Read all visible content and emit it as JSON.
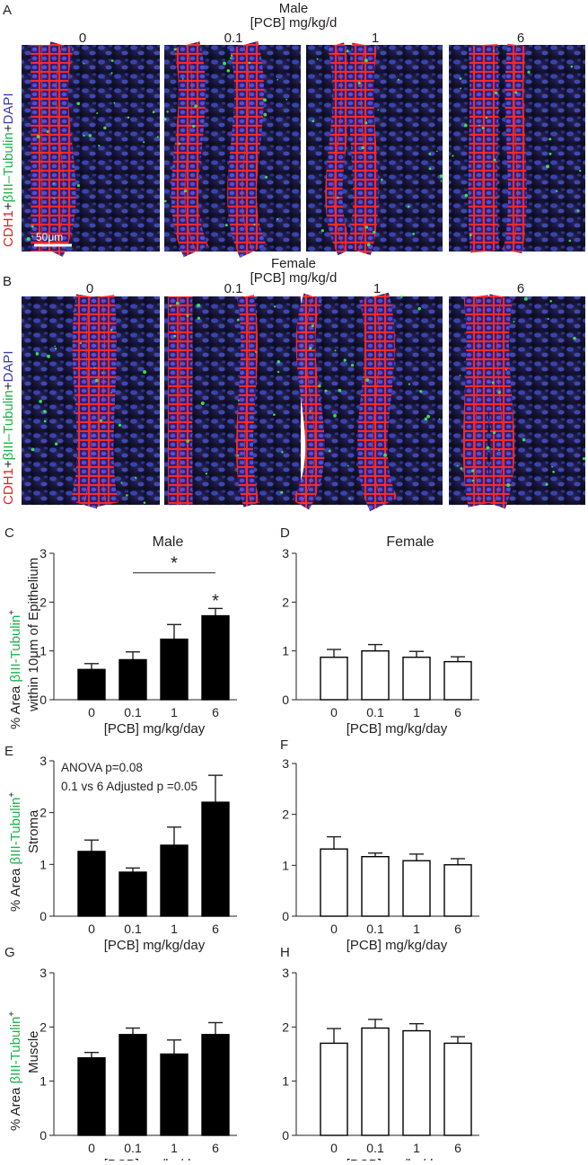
{
  "panels": {
    "A": {
      "letter": "A",
      "sex": "Male",
      "dose_label": "[PCB] mg/kg/d",
      "doses": [
        "0",
        "0.1",
        "1",
        "6"
      ],
      "stain_parts": [
        {
          "text": "CDH1",
          "color": "#e41f26"
        },
        {
          "text": "+",
          "color": "#231f20"
        },
        {
          "text": "βIII–Tubulin",
          "color": "#1db34a"
        },
        {
          "text": "+",
          "color": "#231f20"
        },
        {
          "text": "DAPI",
          "color": "#3a3fa8"
        }
      ],
      "scale_bar": "50μm"
    },
    "B": {
      "letter": "B",
      "sex": "Female",
      "dose_label": "[PCB] mg/kg/d",
      "doses": [
        "0",
        "0.1",
        "1",
        "6"
      ],
      "stain_parts": [
        {
          "text": "CDH1",
          "color": "#e41f26"
        },
        {
          "text": "+",
          "color": "#231f20"
        },
        {
          "text": "βIII–Tubulin",
          "color": "#1db34a"
        },
        {
          "text": "+",
          "color": "#231f20"
        },
        {
          "text": "DAPI",
          "color": "#3a3fa8"
        }
      ]
    }
  },
  "row_ylabels": [
    {
      "prefix": "% Area ",
      "marker": "βIII-Tubulin",
      "suffix": "+",
      "line2": "within 10μm of Epithelium"
    },
    {
      "prefix": "% Area ",
      "marker": "βIII-Tubulin",
      "suffix": "+",
      "line2": "Stroma"
    },
    {
      "prefix": "% Area ",
      "marker": "βIII-Tubulin",
      "suffix": "+",
      "line2": "Muscle"
    }
  ],
  "colors": {
    "marker_green": "#1db34a",
    "male_bar": "#000000",
    "female_bar": "#ffffff",
    "axis": "#231f20"
  },
  "chart_data": [
    {
      "letter": "C",
      "type": "bar",
      "title": "Male",
      "categories": [
        "0",
        "0.1",
        "1",
        "6"
      ],
      "values": [
        0.62,
        0.82,
        1.24,
        1.72
      ],
      "errors": [
        0.12,
        0.16,
        0.3,
        0.15
      ],
      "xlabel": "[PCB] mg/kg/day",
      "ylim": [
        0,
        3
      ],
      "yticks": [
        "0",
        "1",
        "2",
        "3"
      ],
      "fill": "black",
      "annotations": [
        {
          "text": "*",
          "kind": "bracket",
          "from": "0.1",
          "to": "6"
        },
        {
          "text": "*",
          "kind": "bar",
          "at": "6"
        }
      ]
    },
    {
      "letter": "D",
      "type": "bar",
      "title": "Female",
      "categories": [
        "0",
        "0.1",
        "1",
        "6"
      ],
      "values": [
        0.87,
        1.0,
        0.87,
        0.78
      ],
      "errors": [
        0.16,
        0.13,
        0.12,
        0.1
      ],
      "xlabel": "[PCB] mg/kg/day",
      "ylim": [
        0,
        3
      ],
      "yticks": [
        "0",
        "1",
        "2",
        "3"
      ],
      "fill": "white",
      "annotations": []
    },
    {
      "letter": "E",
      "type": "bar",
      "title": "",
      "categories": [
        "0",
        "0.1",
        "1",
        "6"
      ],
      "values": [
        1.25,
        0.85,
        1.37,
        2.2
      ],
      "errors": [
        0.22,
        0.08,
        0.35,
        0.52
      ],
      "xlabel": "[PCB] mg/kg/day",
      "ylim": [
        0,
        3
      ],
      "yticks": [
        "0",
        "1",
        "2",
        "3"
      ],
      "fill": "black",
      "notes": [
        "ANOVA p=0.08",
        "0.1 vs 6 Adjusted p =0.05"
      ],
      "annotations": []
    },
    {
      "letter": "F",
      "type": "bar",
      "title": "",
      "categories": [
        "0",
        "0.1",
        "1",
        "6"
      ],
      "values": [
        1.32,
        1.17,
        1.09,
        1.01
      ],
      "errors": [
        0.24,
        0.07,
        0.13,
        0.12
      ],
      "xlabel": "[PCB] mg/kg/day",
      "ylim": [
        0,
        3
      ],
      "yticks": [
        "0",
        "1",
        "2",
        "3"
      ],
      "fill": "white",
      "annotations": []
    },
    {
      "letter": "G",
      "type": "bar",
      "title": "",
      "categories": [
        "0",
        "0.1",
        "1",
        "6"
      ],
      "values": [
        1.43,
        1.86,
        1.5,
        1.86
      ],
      "errors": [
        0.1,
        0.12,
        0.26,
        0.22
      ],
      "xlabel": "[PCB] mg/kg/day",
      "ylim": [
        0,
        3
      ],
      "yticks": [
        "0",
        "1",
        "2",
        "3"
      ],
      "fill": "black",
      "annotations": []
    },
    {
      "letter": "H",
      "type": "bar",
      "title": "",
      "categories": [
        "0",
        "0.1",
        "1",
        "6"
      ],
      "values": [
        1.7,
        1.98,
        1.93,
        1.7
      ],
      "errors": [
        0.27,
        0.16,
        0.13,
        0.12
      ],
      "xlabel": "[PCB] mg/kg/day",
      "ylim": [
        0,
        3
      ],
      "yticks": [
        "0",
        "1",
        "2",
        "3"
      ],
      "fill": "white",
      "annotations": []
    }
  ]
}
